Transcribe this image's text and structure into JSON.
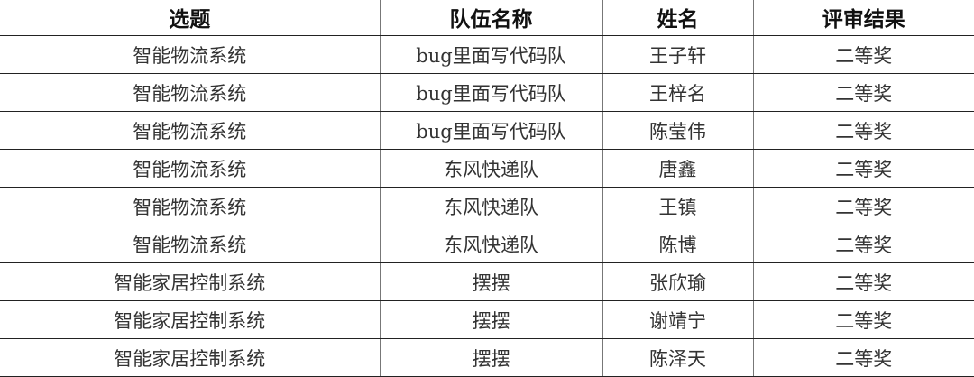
{
  "headers": [
    "选题",
    "队伍名称",
    "姓名",
    "评审结果"
  ],
  "rows": [
    [
      "智能物流系统",
      "bug里面写代码队",
      "王子轩",
      "二等奖"
    ],
    [
      "智能物流系统",
      "bug里面写代码队",
      "王梓名",
      "二等奖"
    ],
    [
      "智能物流系统",
      "bug里面写代码队",
      "陈莹伟",
      "二等奖"
    ],
    [
      "智能物流系统",
      "东风快递队",
      "唐鑫",
      "二等奖"
    ],
    [
      "智能物流系统",
      "东风快递队",
      "王镇",
      "二等奖"
    ],
    [
      "智能物流系统",
      "东风快递队",
      "陈博",
      "二等奖"
    ],
    [
      "智能家居控制系统",
      "摆摆",
      "张欣瑜",
      "二等奖"
    ],
    [
      "智能家居控制系统",
      "摆摆",
      "谢靖宁",
      "二等奖"
    ],
    [
      "智能家居控制系统",
      "摆摆",
      "陈泽天",
      "二等奖"
    ]
  ]
}
